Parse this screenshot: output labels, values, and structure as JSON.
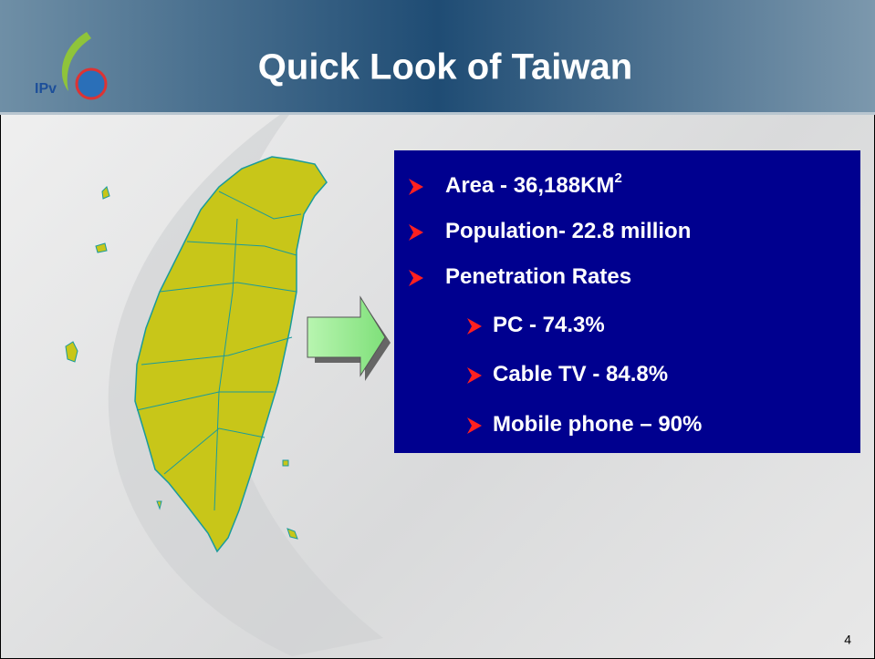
{
  "header": {
    "title": "Quick Look of Taiwan",
    "logo": "IPv"
  },
  "bullets": [
    {
      "text": "Area - 36,188KM",
      "superscript": "2",
      "level": 1
    },
    {
      "text": "Population- 22.8 million",
      "level": 1
    },
    {
      "text": "Penetration Rates",
      "level": 1
    },
    {
      "text": "PC - 74.3%",
      "level": 2
    },
    {
      "text": "Cable TV - 84.8%",
      "level": 2
    },
    {
      "text": "Mobile phone – 90%",
      "level": 2
    }
  ],
  "page_number": "4"
}
